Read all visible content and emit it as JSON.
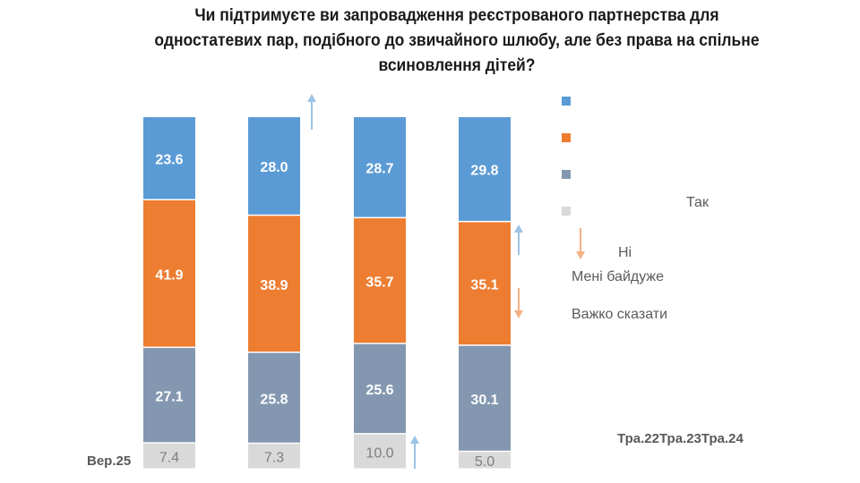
{
  "chart_data": {
    "type": "bar",
    "stacked": true,
    "title": "Чи підтримуєте ви запровадження реєстрованого партнерства для одностатевих пар, подібного до звичайного шлюбу, але без права на спільне всиновлення дітей?",
    "title_lines": [
      "Чи підтримуєте ви запровадження реєстрованого партнерства для",
      "одностатевих пар, подібного до звичайного шлюбу, але без права на спільне",
      "всиновлення дітей?"
    ],
    "categories": [
      "Вер.25",
      "Тра.22",
      "Тра.23",
      "Тра.24"
    ],
    "series": [
      {
        "name": "Так",
        "color": "#5B9BD5",
        "values": [
          23.6,
          28.0,
          28.7,
          29.8
        ]
      },
      {
        "name": "Ні",
        "color": "#ED7D31",
        "values": [
          41.9,
          38.9,
          35.7,
          35.1
        ]
      },
      {
        "name": "Мені байдуже",
        "color": "#8497B0",
        "values": [
          27.1,
          25.8,
          25.6,
          30.1
        ]
      },
      {
        "name": "Важко сказати",
        "color": "#D9D9D9",
        "values": [
          7.4,
          7.3,
          10.0,
          5.0
        ]
      }
    ],
    "label_colors": [
      "#ffffff",
      "#ffffff",
      "#ffffff",
      "#7f7f7f"
    ],
    "ylim": [
      0,
      100
    ],
    "xlabel": "",
    "ylabel": "",
    "grid": false,
    "legend_position": "right",
    "annotations": [
      {
        "type": "arrow-up",
        "color": "#9DC3E6",
        "near_category": "Тра.22",
        "near_series": "Так"
      },
      {
        "type": "arrow-up",
        "color": "#9DC3E6",
        "near_category": "Тра.23",
        "near_series": "Важко сказати"
      },
      {
        "type": "arrow-up",
        "color": "#9DC3E6",
        "near_category": "Тра.24",
        "near_series": "Ні"
      },
      {
        "type": "arrow-down",
        "color": "#F4B183",
        "near_category": "Тра.24",
        "near_series": "Ні"
      },
      {
        "type": "arrow-down",
        "color": "#F4B183",
        "near_category": "legend",
        "near_series": "Ні"
      }
    ]
  },
  "legend": {
    "labels": [
      "Так",
      "Ні",
      "Мені байдуже",
      "Важко сказати"
    ]
  },
  "period_labels": {
    "first": "Вер.25",
    "rest": "Тра.22Тра.23Тра.24"
  }
}
